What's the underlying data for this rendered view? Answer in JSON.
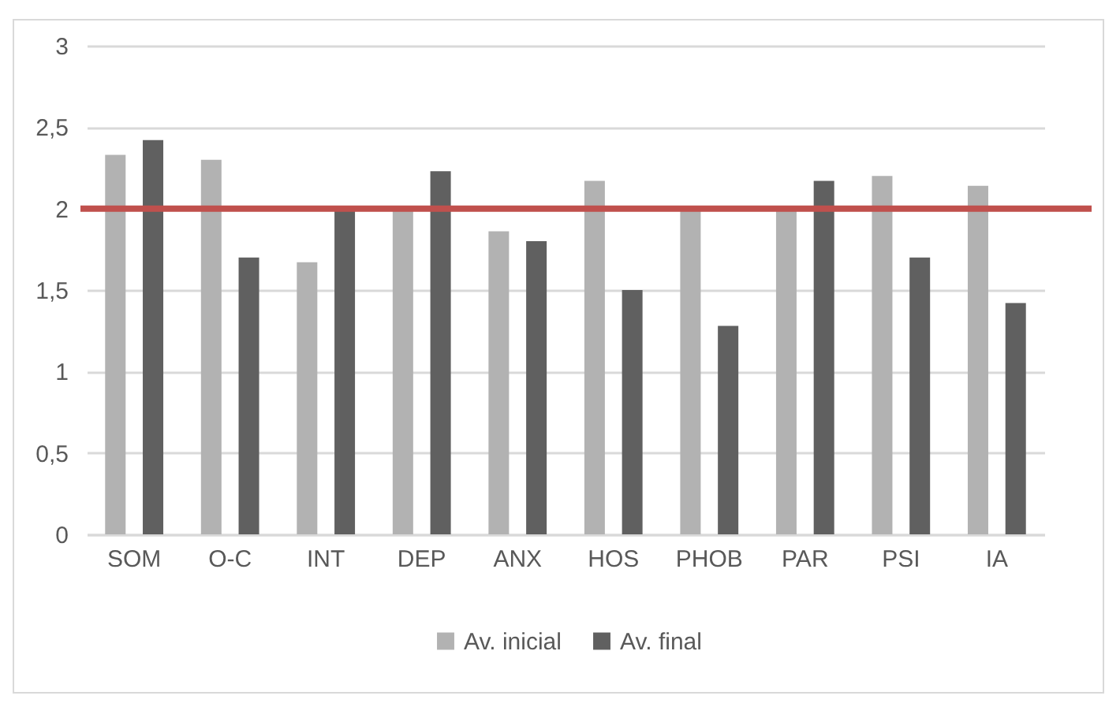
{
  "chart_data": {
    "type": "bar",
    "categories": [
      "SOM",
      "O-C",
      "INT",
      "DEP",
      "ANX",
      "HOS",
      "PHOB",
      "PAR",
      "PSI",
      "IA"
    ],
    "series": [
      {
        "name": "Av. inicial",
        "color": "#b2b2b2",
        "values": [
          2.33,
          2.3,
          1.67,
          2.0,
          1.86,
          2.17,
          2.0,
          2.0,
          2.2,
          2.14
        ]
      },
      {
        "name": "Av. final",
        "color": "#606060",
        "values": [
          2.42,
          1.7,
          2.0,
          2.23,
          1.8,
          1.5,
          1.28,
          2.17,
          1.7,
          1.42
        ]
      }
    ],
    "ylim": [
      0,
      3
    ],
    "yticks": [
      {
        "value": 0,
        "label": "0"
      },
      {
        "value": 0.5,
        "label": "0,5"
      },
      {
        "value": 1,
        "label": "1"
      },
      {
        "value": 1.5,
        "label": "1,5"
      },
      {
        "value": 2,
        "label": "2"
      },
      {
        "value": 2.5,
        "label": "2,5"
      },
      {
        "value": 3,
        "label": "3"
      }
    ],
    "ref_lines": [
      {
        "axis": "y",
        "value": 2,
        "color": "#c0504d"
      }
    ],
    "grid": "y",
    "legend": "bottom"
  }
}
